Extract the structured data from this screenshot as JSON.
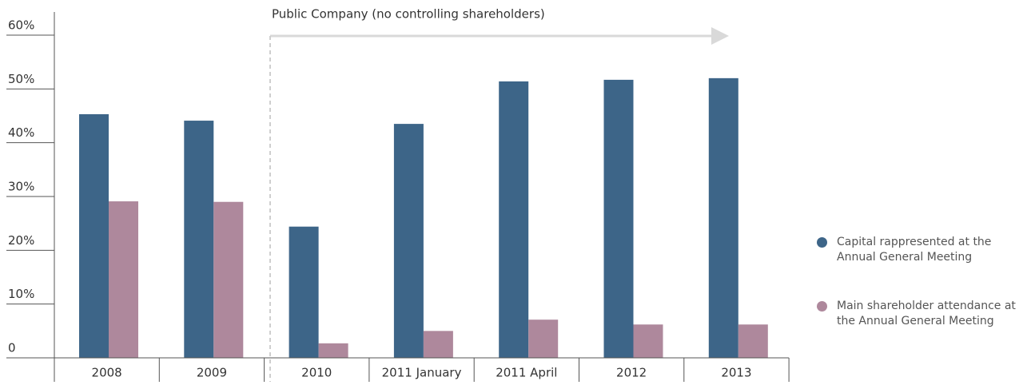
{
  "chart_data": {
    "type": "bar",
    "annotation": "Public Company (no controlling shareholders)",
    "categories": [
      "2008",
      "2009",
      "2010",
      "2011 January",
      "2011 April",
      "2012",
      "2013"
    ],
    "series": [
      {
        "name": "Capital rappresented at the Annual General Meeting",
        "color": "#3d6588",
        "values": [
          45.3,
          44.1,
          24.4,
          43.5,
          51.4,
          51.7,
          52
        ]
      },
      {
        "name": "Main shareholder attendance at the Annual General Meeting",
        "color": "#ae889c",
        "values": [
          29.1,
          29,
          2.7,
          5,
          7.1,
          6.2,
          6.2
        ]
      }
    ],
    "ylim": [
      0,
      60
    ],
    "yticks": [
      0,
      {
        "value": 10,
        "label": "10%"
      },
      {
        "value": 20,
        "label": "20%"
      },
      {
        "value": 30,
        "label": "30%"
      },
      {
        "value": 40,
        "label": "40%"
      },
      {
        "value": 50,
        "label": "50%"
      },
      {
        "value": 60,
        "label": "60%"
      }
    ],
    "legend": "right"
  }
}
